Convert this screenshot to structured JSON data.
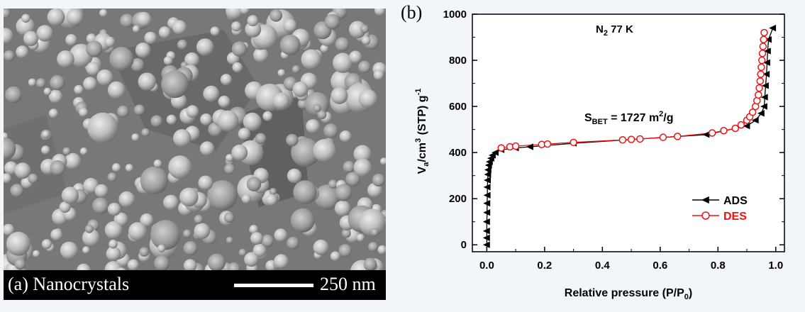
{
  "panel_a": {
    "label": "(a) Nanocrystals",
    "scale_bar_text": "250 nm"
  },
  "panel_b": {
    "letter": "(b)",
    "annotation_condition": "N",
    "annotation_condition_sub": "2",
    "annotation_condition_rest": " 77 K",
    "annotation_bet_prefix": "S",
    "annotation_bet_sub": "BET",
    "annotation_bet_value": " = 1727 m",
    "annotation_bet_sup": "2",
    "annotation_bet_unit": "/g"
  },
  "chart_data": {
    "type": "line",
    "xlabel": "Relative pressure (P/P0)",
    "ylabel": "Va/cm3 (STP) g-1",
    "xlim": [
      -0.05,
      1.03
    ],
    "ylim": [
      -30,
      1000
    ],
    "xticks": [
      0.0,
      0.2,
      0.4,
      0.6,
      0.8,
      1.0
    ],
    "xtick_labels": [
      "0.0",
      "0.2",
      "0.4",
      "0.6",
      "0.8",
      "1.0"
    ],
    "yticks": [
      0,
      200,
      400,
      600,
      800,
      1000
    ],
    "ytick_labels": [
      "0",
      "200",
      "400",
      "600",
      "800",
      "1000"
    ],
    "legend_position": "bottom-right",
    "colors": {
      "ads": "#000000",
      "des": "#ee1111"
    },
    "series": [
      {
        "name": "ADS",
        "marker": "filled-triangle-left",
        "x": [
          0.0,
          0.0,
          0.0,
          0.0,
          0.001,
          0.001,
          0.002,
          0.002,
          0.003,
          0.004,
          0.005,
          0.007,
          0.01,
          0.015,
          0.02,
          0.03,
          0.05,
          0.1,
          0.15,
          0.3,
          0.76,
          0.9,
          0.93,
          0.95,
          0.96,
          0.962,
          0.965,
          0.968,
          0.97,
          0.972,
          0.975,
          0.99
        ],
        "y": [
          0,
          30,
          60,
          100,
          140,
          180,
          215,
          250,
          280,
          305,
          325,
          345,
          360,
          375,
          388,
          400,
          412,
          420,
          425,
          440,
          478,
          515,
          540,
          570,
          600,
          640,
          690,
          740,
          790,
          840,
          890,
          940
        ]
      },
      {
        "name": "DES",
        "marker": "open-circle",
        "x": [
          0.05,
          0.08,
          0.1,
          0.19,
          0.21,
          0.3,
          0.47,
          0.5,
          0.53,
          0.61,
          0.66,
          0.78,
          0.82,
          0.86,
          0.88,
          0.9,
          0.91,
          0.92,
          0.93,
          0.935,
          0.94,
          0.943,
          0.946,
          0.948,
          0.95,
          0.952,
          0.954,
          0.956,
          0.958,
          0.96
        ],
        "y": [
          420,
          425,
          428,
          435,
          437,
          444,
          455,
          457,
          459,
          466,
          470,
          485,
          495,
          505,
          520,
          540,
          555,
          575,
          600,
          625,
          650,
          680,
          710,
          740,
          770,
          800,
          830,
          860,
          890,
          920
        ]
      }
    ]
  }
}
